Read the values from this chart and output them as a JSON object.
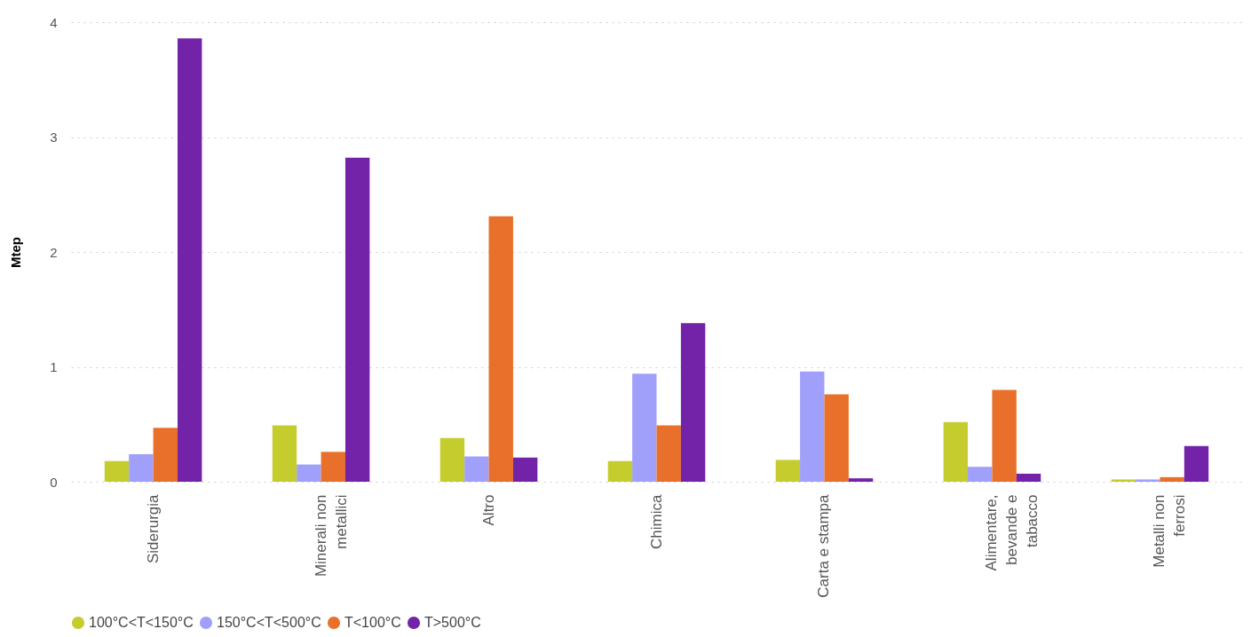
{
  "chart_data": {
    "type": "bar",
    "ylabel": "Mtep",
    "categories": [
      "Siderurgia",
      "Minerali non metallici",
      "Altro",
      "Chimica",
      "Carta e stampa",
      "Alimentare, bevande e tabacco",
      "Metalli non ferrosi"
    ],
    "series": [
      {
        "name": "100°C<T<150°C",
        "color": "#c4cc2e",
        "values": [
          0.18,
          0.49,
          0.38,
          0.18,
          0.19,
          0.52,
          0.02
        ]
      },
      {
        "name": "150°C<T<500°C",
        "color": "#a0a0fa",
        "values": [
          0.24,
          0.15,
          0.22,
          0.94,
          0.96,
          0.13,
          0.02
        ]
      },
      {
        "name": "T<100°C",
        "color": "#e8702a",
        "values": [
          0.47,
          0.26,
          2.31,
          0.49,
          0.76,
          0.8,
          0.04
        ]
      },
      {
        "name": "T>500°C",
        "color": "#7323a8",
        "values": [
          3.86,
          2.82,
          0.21,
          1.38,
          0.03,
          0.07,
          0.31
        ]
      }
    ],
    "ylim": [
      0,
      4
    ],
    "yticks": [
      0,
      1,
      2,
      3,
      4
    ],
    "grid": "y",
    "legend": "bottom",
    "marker": "circle"
  }
}
